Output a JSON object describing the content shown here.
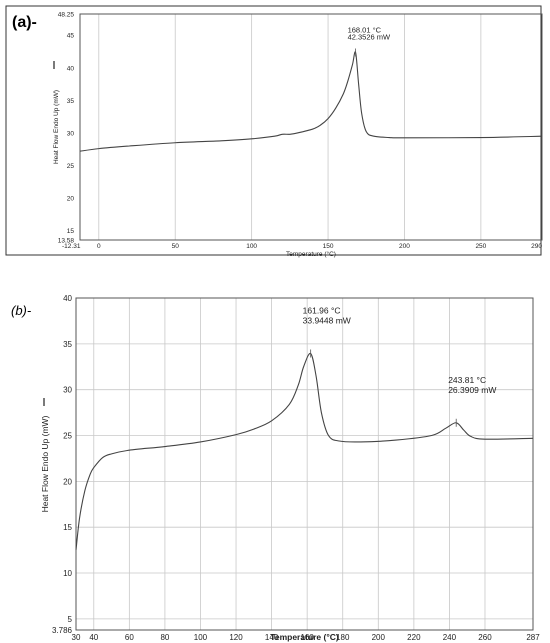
{
  "panels": {
    "a": {
      "label": "(a)-"
    },
    "b": {
      "label": "(b)-"
    }
  },
  "chart_data": [
    {
      "type": "line",
      "panel": "a",
      "xlabel": "Temperature (°C)",
      "ylabel": "Heat Flow Endo Up (mW)",
      "xlim": [
        -12.31,
        290
      ],
      "ylim": [
        13.58,
        48.25
      ],
      "xticks": [
        0,
        50,
        100,
        150,
        200,
        250
      ],
      "xtick_labels": [
        "-12.31",
        "0",
        "50",
        "100",
        "150",
        "200",
        "250",
        "290"
      ],
      "yticks": [
        15,
        20,
        25,
        30,
        35,
        40,
        45
      ],
      "ytick_labels": [
        "13.58",
        "15",
        "20",
        "25",
        "30",
        "35",
        "40",
        "45",
        "48.25"
      ],
      "grid": "vertical",
      "series": [
        {
          "color": "#444444",
          "x": [
            -12.31,
            0,
            20,
            50,
            80,
            100,
            115,
            120,
            125,
            130,
            140,
            145,
            150,
            155,
            160,
            163,
            166,
            168.01,
            170,
            172,
            175,
            180,
            190,
            200,
            250,
            290
          ],
          "y": [
            27.2,
            27.6,
            28.0,
            28.5,
            28.8,
            29.1,
            29.5,
            29.8,
            29.8,
            30.0,
            30.6,
            31.2,
            32.2,
            33.8,
            36.0,
            38.0,
            40.5,
            42.35,
            37.5,
            33.0,
            30.2,
            29.5,
            29.3,
            29.25,
            29.3,
            29.5
          ]
        }
      ],
      "annotations": [
        {
          "x": 168.01,
          "y": 42.3526,
          "text": [
            "168.01 °C",
            "42.3526 mW"
          ]
        }
      ]
    },
    {
      "type": "line",
      "panel": "b",
      "xlabel": "Temperature (°C)",
      "ylabel": "Heat Flow Endo Up (mW)",
      "xlim": [
        30,
        287
      ],
      "ylim": [
        3.786,
        40
      ],
      "xticks": [
        30,
        40,
        60,
        80,
        100,
        120,
        140,
        160,
        180,
        200,
        220,
        240,
        260,
        287
      ],
      "yticks": [
        3.786,
        5,
        10,
        15,
        20,
        25,
        30,
        35,
        40
      ],
      "ytick_labels": [
        "3.786",
        "5",
        "10",
        "15",
        "20",
        "25",
        "30",
        "35",
        "40"
      ],
      "grid": "both",
      "series": [
        {
          "color": "#444444",
          "x": [
            30,
            32,
            35,
            38,
            40,
            45,
            50,
            60,
            80,
            100,
            120,
            130,
            140,
            150,
            155,
            158,
            161.96,
            165,
            168,
            172,
            178,
            190,
            210,
            230,
            238,
            243.81,
            248,
            252,
            260,
            287
          ],
          "y": [
            12.5,
            16.0,
            19.0,
            20.8,
            21.5,
            22.6,
            23.0,
            23.4,
            23.8,
            24.3,
            25.1,
            25.7,
            26.6,
            28.4,
            30.5,
            32.5,
            33.94,
            31.5,
            27.5,
            25.0,
            24.4,
            24.3,
            24.5,
            25.0,
            25.8,
            26.39,
            25.6,
            24.9,
            24.6,
            24.7
          ]
        }
      ],
      "annotations": [
        {
          "x": 161.96,
          "y": 33.9448,
          "text": [
            "161.96 °C",
            "33.9448 mW"
          ]
        },
        {
          "x": 243.81,
          "y": 26.3909,
          "text": [
            "243.81 °C",
            "26.3909 mW"
          ]
        }
      ]
    }
  ]
}
